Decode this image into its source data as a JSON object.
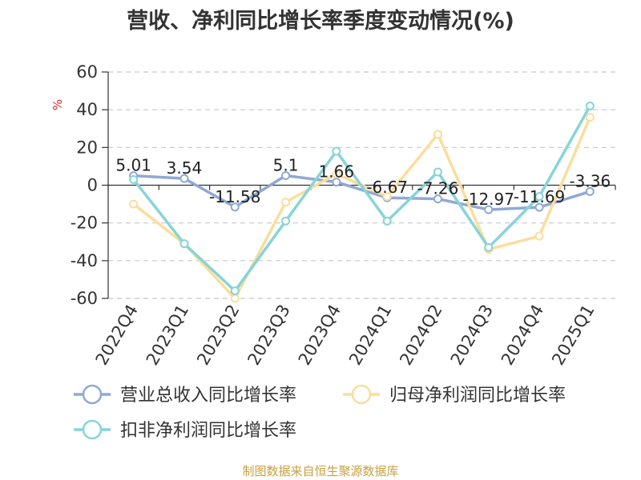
{
  "chart_data": {
    "type": "line",
    "title": "营收、净利同比增长率季度变动情况(%)",
    "ylabel": "%",
    "ylim": [
      -60,
      60
    ],
    "yticks": [
      60,
      40,
      20,
      0,
      -20,
      -40,
      -60
    ],
    "grid": true,
    "legend_position": "bottom",
    "categories": [
      "2022Q4",
      "2023Q1",
      "2023Q2",
      "2023Q3",
      "2023Q4",
      "2024Q1",
      "2024Q2",
      "2024Q3",
      "2024Q4",
      "2025Q1"
    ],
    "series": [
      {
        "name": "营业总收入同比增长率",
        "color": "#8fa9d6",
        "values": [
          5.01,
          3.54,
          -11.58,
          5.1,
          1.66,
          -6.67,
          -7.26,
          -12.97,
          -11.69,
          -3.36
        ],
        "labels": [
          "5.01",
          "3.54",
          "-11.58",
          "5.1",
          "1.66",
          "-6.67",
          "-7.26",
          "-12.97",
          "-11.69",
          "-3.36"
        ]
      },
      {
        "name": "归母净利润同比增长率",
        "color": "#fbdd9c",
        "values": [
          -10,
          -31,
          -60,
          -9,
          6,
          -6,
          27,
          -34,
          -27,
          36
        ]
      },
      {
        "name": "扣非净利润同比增长率",
        "color": "#87d4d8",
        "values": [
          3,
          -31,
          -56,
          -19,
          18,
          -19,
          7,
          -33,
          -6,
          42
        ]
      }
    ]
  },
  "footer": "制图数据来自恒生聚源数据库"
}
